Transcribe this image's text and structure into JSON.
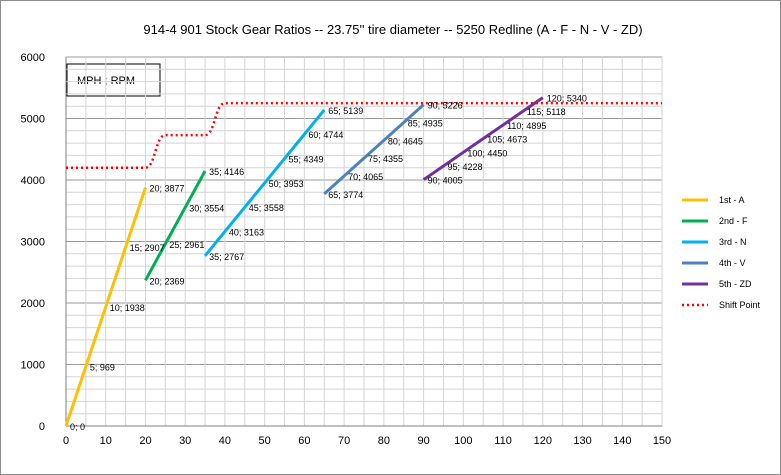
{
  "chart_data": {
    "type": "line",
    "title": "914-4 901 Stock Gear Ratios -- 23.75'' tire diameter -- 5250 Redline   (A - F - N - V - ZD)",
    "annotation": "MPH ; RPM",
    "xlabel": "",
    "ylabel": "",
    "xlim": [
      0,
      150
    ],
    "ylim": [
      0,
      6000
    ],
    "x_ticks": [
      0,
      10,
      20,
      30,
      40,
      50,
      60,
      70,
      80,
      90,
      100,
      110,
      120,
      130,
      140,
      150
    ],
    "y_ticks": [
      0,
      1000,
      2000,
      3000,
      4000,
      5000,
      6000
    ],
    "grid": true,
    "legend_position": "right",
    "series": [
      {
        "name": "1st - A",
        "color": "#FFC000",
        "style": "solid",
        "points": [
          [
            0,
            0
          ],
          [
            5,
            969
          ],
          [
            10,
            1938
          ],
          [
            15,
            2907
          ],
          [
            20,
            3877
          ]
        ],
        "labels": [
          "0; 0",
          "5; 969",
          "10; 1938",
          "15; 2907",
          "20; 3877"
        ]
      },
      {
        "name": "2nd - F",
        "color": "#00B050",
        "style": "solid",
        "points": [
          [
            20,
            2369
          ],
          [
            25,
            2961
          ],
          [
            30,
            3554
          ],
          [
            35,
            4146
          ]
        ],
        "labels": [
          "20; 2369",
          "25; 2961",
          "30; 3554",
          "35; 4146"
        ]
      },
      {
        "name": "3rd - N",
        "color": "#00B0F0",
        "style": "solid",
        "points": [
          [
            35,
            2767
          ],
          [
            40,
            3163
          ],
          [
            45,
            3558
          ],
          [
            50,
            3953
          ],
          [
            55,
            4349
          ],
          [
            60,
            4744
          ],
          [
            65,
            5139
          ]
        ],
        "labels": [
          "35; 2767",
          "40; 3163",
          "45; 3558",
          "50; 3953",
          "55; 4349",
          "60; 4744",
          "65; 5139"
        ]
      },
      {
        "name": "4th - V",
        "color": "#4F81BD",
        "style": "solid",
        "points": [
          [
            65,
            3774
          ],
          [
            70,
            4065
          ],
          [
            75,
            4355
          ],
          [
            80,
            4645
          ],
          [
            85,
            4935
          ],
          [
            90,
            5226
          ]
        ],
        "labels": [
          "65; 3774",
          "70; 4065",
          "75; 4355",
          "80; 4645",
          "85; 4935",
          "90; 5226"
        ]
      },
      {
        "name": "5th - ZD",
        "color": "#7030A0",
        "style": "solid",
        "points": [
          [
            90,
            4005
          ],
          [
            95,
            4228
          ],
          [
            100,
            4450
          ],
          [
            105,
            4673
          ],
          [
            110,
            4895
          ],
          [
            115,
            5118
          ],
          [
            120,
            5340
          ]
        ],
        "labels": [
          "90; 4005",
          "95; 4228",
          "100; 4450",
          "105; 4673",
          "110; 4895",
          "115; 5118",
          "120; 5340"
        ]
      },
      {
        "name": "Shift Point",
        "color": "#FF0000",
        "style": "dotted",
        "points": [
          [
            0,
            4200
          ],
          [
            20,
            4200
          ],
          [
            25,
            4730
          ],
          [
            35,
            4730
          ],
          [
            40,
            5250
          ],
          [
            150,
            5250
          ]
        ],
        "labels": []
      }
    ]
  }
}
